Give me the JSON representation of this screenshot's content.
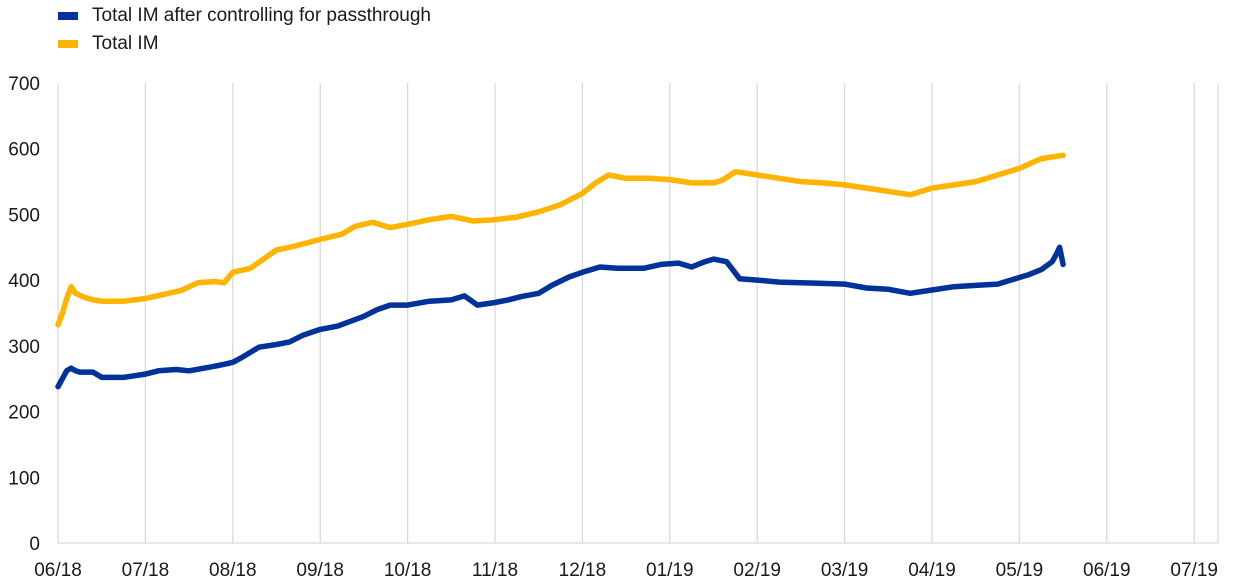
{
  "chart_data": {
    "type": "line",
    "title": "",
    "xlabel": "",
    "ylabel": "",
    "ylim": [
      0,
      700
    ],
    "yticks": [
      "0",
      "100",
      "200",
      "300",
      "400",
      "500",
      "600",
      "700"
    ],
    "xticks": [
      "06/18",
      "07/18",
      "08/18",
      "09/18",
      "10/18",
      "11/18",
      "12/18",
      "01/19",
      "02/19",
      "03/19",
      "04/19",
      "05/19",
      "06/19",
      "07/19"
    ],
    "grid": "vertical",
    "legend_position": "top-left",
    "series": [
      {
        "name": "Total IM after controlling for passthrough",
        "color": "#003299",
        "points": [
          [
            0,
            238
          ],
          [
            0.1,
            250
          ],
          [
            0.2,
            262
          ],
          [
            0.3,
            266
          ],
          [
            0.4,
            262
          ],
          [
            0.5,
            260
          ],
          [
            0.8,
            260
          ],
          [
            1.0,
            252
          ],
          [
            1.5,
            252
          ],
          [
            2.0,
            257
          ],
          [
            2.3,
            262
          ],
          [
            2.7,
            264
          ],
          [
            3.0,
            262
          ],
          [
            3.5,
            268
          ],
          [
            3.8,
            272
          ],
          [
            4.0,
            275
          ],
          [
            4.2,
            282
          ],
          [
            4.6,
            298
          ],
          [
            5.0,
            302
          ],
          [
            5.3,
            306
          ],
          [
            5.6,
            316
          ],
          [
            6.0,
            325
          ],
          [
            6.4,
            330
          ],
          [
            6.8,
            340
          ],
          [
            7.0,
            345
          ],
          [
            7.3,
            355
          ],
          [
            7.6,
            362
          ],
          [
            8.0,
            362
          ],
          [
            8.5,
            368
          ],
          [
            9.0,
            370
          ],
          [
            9.3,
            376
          ],
          [
            9.6,
            362
          ],
          [
            10.0,
            366
          ],
          [
            10.3,
            370
          ],
          [
            10.6,
            375
          ],
          [
            11.0,
            380
          ],
          [
            11.3,
            392
          ],
          [
            11.7,
            405
          ],
          [
            12.0,
            412
          ],
          [
            12.4,
            420
          ],
          [
            12.8,
            418
          ],
          [
            13.0,
            418
          ],
          [
            13.4,
            418
          ],
          [
            13.8,
            424
          ],
          [
            14.2,
            426
          ],
          [
            14.5,
            420
          ],
          [
            14.8,
            428
          ],
          [
            15.0,
            432
          ],
          [
            15.3,
            428
          ],
          [
            15.6,
            402
          ],
          [
            16.0,
            400
          ],
          [
            16.5,
            397
          ],
          [
            17.0,
            396
          ],
          [
            17.5,
            395
          ],
          [
            18.0,
            394
          ],
          [
            18.5,
            388
          ],
          [
            19.0,
            386
          ],
          [
            19.5,
            380
          ],
          [
            20.0,
            385
          ],
          [
            20.5,
            390
          ],
          [
            21.0,
            392
          ],
          [
            21.5,
            394
          ],
          [
            21.8,
            400
          ],
          [
            22.2,
            408
          ],
          [
            22.5,
            416
          ],
          [
            22.75,
            428
          ],
          [
            22.85,
            440
          ],
          [
            22.92,
            450
          ],
          [
            23.0,
            424
          ]
        ]
      },
      {
        "name": "Total IM",
        "color": "#FFB400",
        "points": [
          [
            0,
            332
          ],
          [
            0.1,
            350
          ],
          [
            0.2,
            372
          ],
          [
            0.3,
            390
          ],
          [
            0.4,
            380
          ],
          [
            0.6,
            374
          ],
          [
            0.8,
            370
          ],
          [
            1.0,
            368
          ],
          [
            1.5,
            368
          ],
          [
            2.0,
            372
          ],
          [
            2.4,
            378
          ],
          [
            2.8,
            384
          ],
          [
            3.2,
            396
          ],
          [
            3.6,
            398
          ],
          [
            3.8,
            396
          ],
          [
            4.0,
            412
          ],
          [
            4.4,
            418
          ],
          [
            4.7,
            432
          ],
          [
            5.0,
            446
          ],
          [
            5.3,
            450
          ],
          [
            5.6,
            455
          ],
          [
            6.0,
            462
          ],
          [
            6.5,
            470
          ],
          [
            6.8,
            482
          ],
          [
            7.2,
            488
          ],
          [
            7.6,
            480
          ],
          [
            8.0,
            485
          ],
          [
            8.5,
            492
          ],
          [
            9.0,
            497
          ],
          [
            9.5,
            490
          ],
          [
            10.0,
            492
          ],
          [
            10.5,
            496
          ],
          [
            11.0,
            504
          ],
          [
            11.5,
            515
          ],
          [
            12.0,
            532
          ],
          [
            12.3,
            548
          ],
          [
            12.6,
            560
          ],
          [
            13.0,
            555
          ],
          [
            13.5,
            555
          ],
          [
            14.0,
            553
          ],
          [
            14.5,
            548
          ],
          [
            15.0,
            548
          ],
          [
            15.2,
            552
          ],
          [
            15.5,
            565
          ],
          [
            16.0,
            560
          ],
          [
            16.5,
            555
          ],
          [
            17.0,
            550
          ],
          [
            17.5,
            548
          ],
          [
            18.0,
            545
          ],
          [
            18.5,
            540
          ],
          [
            19.0,
            535
          ],
          [
            19.5,
            530
          ],
          [
            20.0,
            540
          ],
          [
            20.5,
            545
          ],
          [
            21.0,
            550
          ],
          [
            21.5,
            560
          ],
          [
            22.0,
            570
          ],
          [
            22.5,
            585
          ],
          [
            23.0,
            590
          ]
        ]
      }
    ]
  }
}
